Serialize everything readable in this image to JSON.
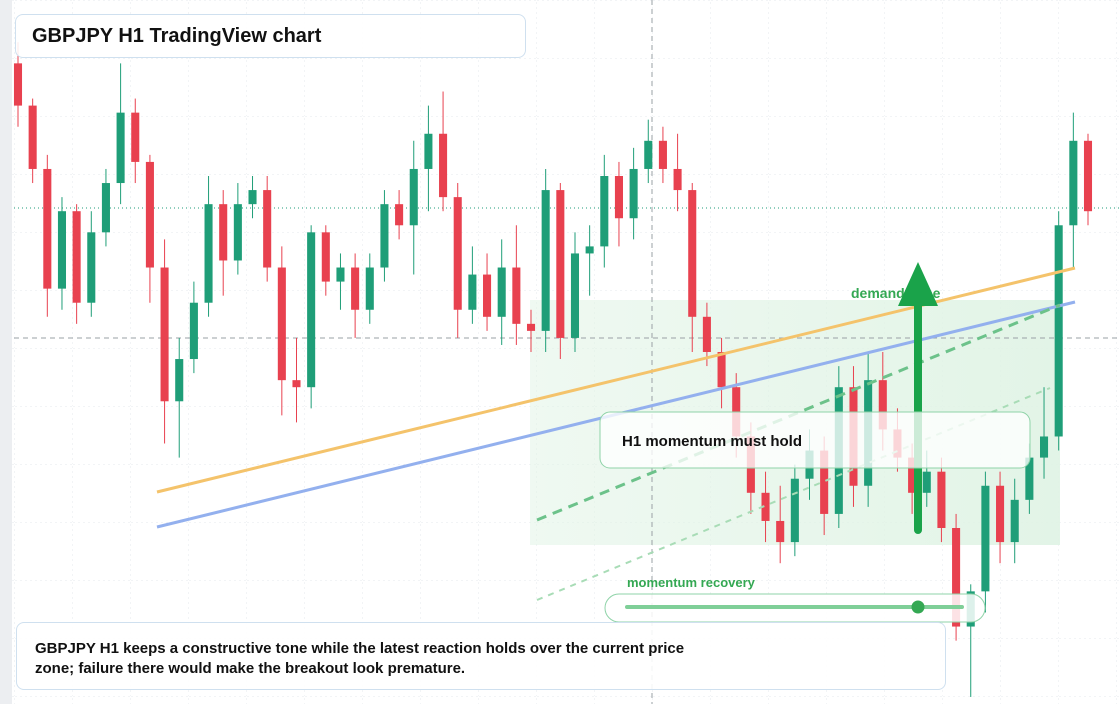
{
  "chart_data": {
    "type": "candlestick",
    "title": "GBPJPY H1 TradingView chart",
    "up_color": "#1f9e78",
    "down_color": "#e8414f",
    "ylim": [
      0,
      100
    ],
    "candles": [
      [
        91,
        94,
        82,
        85
      ],
      [
        85,
        86,
        74,
        76
      ],
      [
        76,
        78,
        55,
        59
      ],
      [
        59,
        72,
        56,
        70
      ],
      [
        70,
        71,
        54,
        57
      ],
      [
        57,
        70,
        55,
        67
      ],
      [
        67,
        76,
        65,
        74
      ],
      [
        74,
        91,
        71,
        84
      ],
      [
        84,
        86,
        74,
        77
      ],
      [
        77,
        78,
        57,
        62
      ],
      [
        62,
        66,
        37,
        43
      ],
      [
        43,
        52,
        35,
        49
      ],
      [
        49,
        60,
        47,
        57
      ],
      [
        57,
        75,
        55,
        71
      ],
      [
        71,
        73,
        58,
        63
      ],
      [
        63,
        74,
        61,
        71
      ],
      [
        71,
        75,
        69,
        73
      ],
      [
        73,
        75,
        60,
        62
      ],
      [
        62,
        65,
        41,
        46
      ],
      [
        46,
        52,
        40,
        45
      ],
      [
        45,
        68,
        42,
        67
      ],
      [
        67,
        68,
        58,
        60
      ],
      [
        60,
        64,
        56,
        62
      ],
      [
        62,
        64,
        52,
        56
      ],
      [
        56,
        64,
        54,
        62
      ],
      [
        62,
        73,
        60,
        71
      ],
      [
        71,
        73,
        66,
        68
      ],
      [
        68,
        80,
        61,
        76
      ],
      [
        76,
        85,
        70,
        81
      ],
      [
        81,
        87,
        70,
        72
      ],
      [
        72,
        74,
        52,
        56
      ],
      [
        56,
        65,
        54,
        61
      ],
      [
        61,
        64,
        53,
        55
      ],
      [
        55,
        66,
        51,
        62
      ],
      [
        62,
        68,
        51,
        54
      ],
      [
        54,
        56,
        50,
        53
      ],
      [
        53,
        76,
        50,
        73
      ],
      [
        73,
        74,
        49,
        52
      ],
      [
        52,
        67,
        50,
        64
      ],
      [
        64,
        68,
        58,
        65
      ],
      [
        65,
        78,
        62,
        75
      ],
      [
        75,
        77,
        65,
        69
      ],
      [
        69,
        79,
        66,
        76
      ],
      [
        76,
        83,
        74,
        80
      ],
      [
        80,
        82,
        74,
        76
      ],
      [
        76,
        81,
        70,
        73
      ],
      [
        73,
        74,
        50,
        55
      ],
      [
        55,
        57,
        48,
        50
      ],
      [
        50,
        52,
        42,
        45
      ],
      [
        45,
        47,
        35,
        38
      ],
      [
        38,
        40,
        27,
        30
      ],
      [
        30,
        33,
        23,
        26
      ],
      [
        26,
        31,
        20,
        23
      ],
      [
        23,
        34,
        21,
        32
      ],
      [
        32,
        39,
        29,
        36
      ],
      [
        36,
        38,
        24,
        27
      ],
      [
        27,
        48,
        25,
        45
      ],
      [
        45,
        48,
        28,
        31
      ],
      [
        31,
        50,
        28,
        46
      ],
      [
        46,
        50,
        36,
        39
      ],
      [
        39,
        42,
        33,
        35
      ],
      [
        35,
        37,
        27,
        30
      ],
      [
        30,
        36,
        28,
        33
      ],
      [
        33,
        35,
        23,
        25
      ],
      [
        25,
        27,
        9,
        11
      ],
      [
        11,
        17,
        1,
        16
      ],
      [
        16,
        33,
        13,
        31
      ],
      [
        31,
        33,
        20,
        23
      ],
      [
        23,
        32,
        20,
        29
      ],
      [
        29,
        37,
        27,
        35
      ],
      [
        35,
        45,
        32,
        38
      ],
      [
        38,
        70,
        36,
        68
      ],
      [
        68,
        84,
        62,
        80
      ],
      [
        80,
        81,
        68,
        70
      ]
    ],
    "annotations": {
      "zone": "demand zone",
      "hold": "H1 momentum must hold",
      "recovery": "momentum recovery"
    },
    "note": "GBPJPY H1 keeps a constructive tone while the latest reaction holds over the current price zone; failure there would make the breakout look premature."
  }
}
